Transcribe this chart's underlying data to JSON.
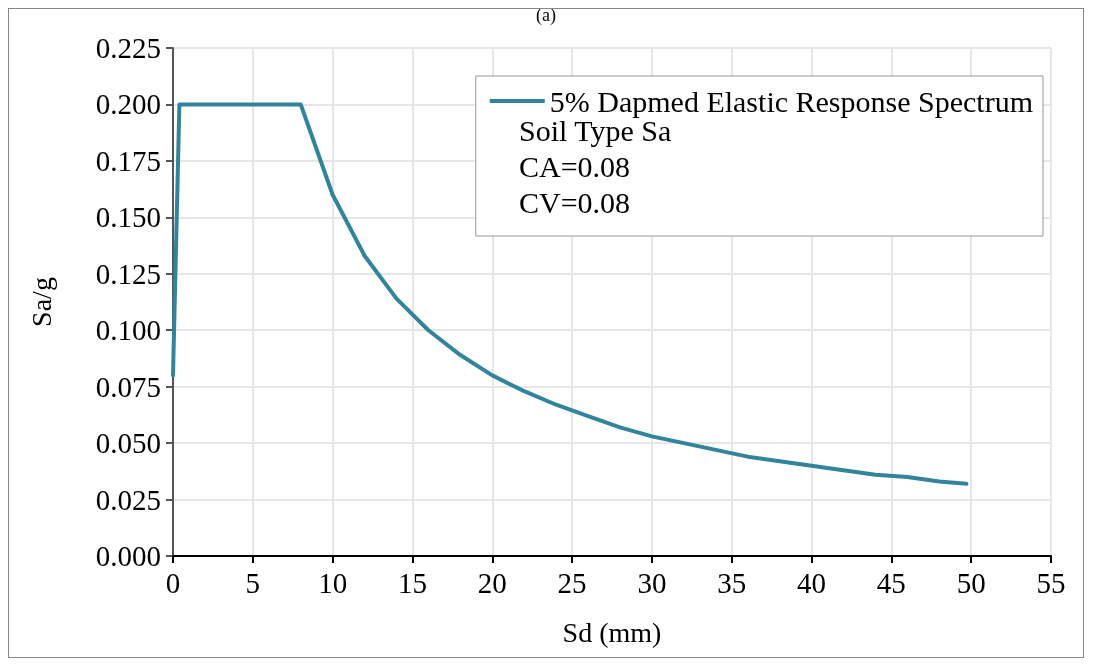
{
  "chart_data": {
    "type": "line",
    "title": "(a)",
    "xlabel": "Sd (mm)",
    "ylabel": "Sa/g",
    "series": [
      {
        "name": "5% Dapmed Elastic Response Spectrum",
        "color": "#31849b",
        "x": [
          0,
          0.4,
          8,
          10,
          12,
          14,
          16,
          18,
          20,
          22,
          24,
          26,
          28,
          30,
          32,
          34,
          36,
          38,
          40,
          42,
          44,
          46,
          48,
          49.7
        ],
        "values": [
          0.08,
          0.2,
          0.2,
          0.16,
          0.133,
          0.114,
          0.1,
          0.089,
          0.08,
          0.073,
          0.067,
          0.062,
          0.057,
          0.053,
          0.05,
          0.047,
          0.044,
          0.042,
          0.04,
          0.038,
          0.036,
          0.035,
          0.033,
          0.032
        ]
      }
    ],
    "annotations": [
      "Soil Type Sa",
      "CA=0.08",
      "CV=0.08"
    ],
    "xlim": [
      0,
      55
    ],
    "xticks": [
      0,
      5,
      10,
      15,
      20,
      25,
      30,
      35,
      40,
      45,
      50,
      55
    ],
    "ylim": [
      0,
      0.225
    ],
    "yticks": [
      {
        "value": 0,
        "label": "0.000"
      },
      {
        "value": 0.025,
        "label": "0.025"
      },
      {
        "value": 0.05,
        "label": "0.050"
      },
      {
        "value": 0.075,
        "label": "0.075"
      },
      {
        "value": 0.1,
        "label": "0.100"
      },
      {
        "value": 0.125,
        "label": "0.125"
      },
      {
        "value": 0.15,
        "label": "0.150"
      },
      {
        "value": 0.175,
        "label": "0.175"
      },
      {
        "value": 0.2,
        "label": "0.200"
      },
      {
        "value": 0.225,
        "label": "0.225"
      }
    ],
    "grid": true,
    "legend": "top right",
    "marker": "none",
    "line_style": "solid"
  }
}
